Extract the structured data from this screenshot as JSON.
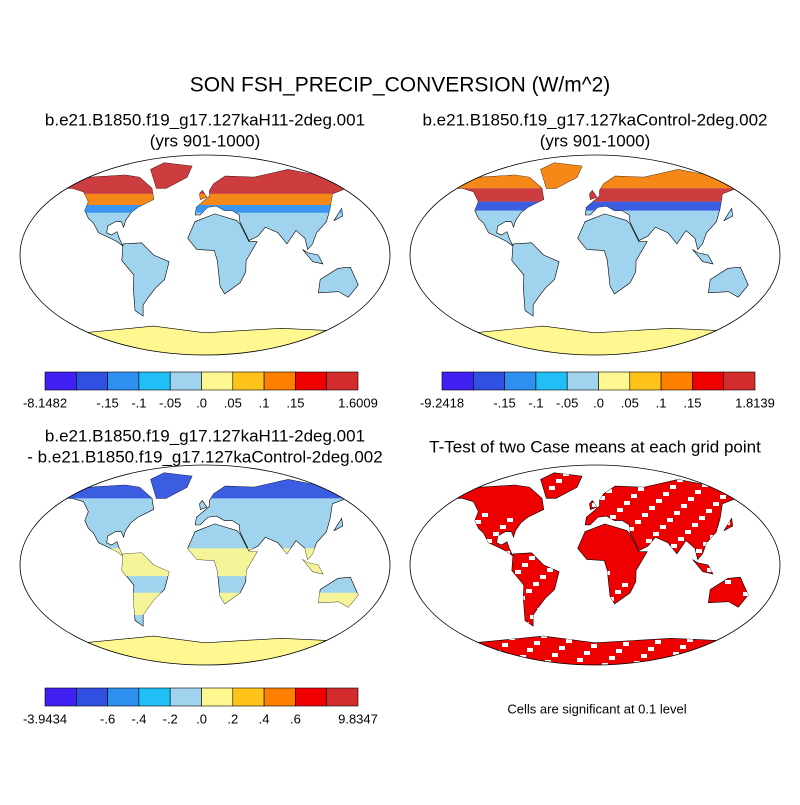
{
  "title": "SON FSH_PRECIP_CONVERSION (W/m^2)",
  "panels": [
    {
      "title": [
        "b.e21.B1850.f19_g17.127kaH11-2deg.001",
        "(yrs 901-1000)"
      ],
      "colorbar": {
        "colors": [
          "#4020f0",
          "#2f50e0",
          "#2f8ff0",
          "#20bff5",
          "#a0d4ee",
          "#fff78f",
          "#ffc31a",
          "#ff7f00",
          "#f00000",
          "#d22c2c"
        ],
        "labels": [
          "-8.1482",
          null,
          "-.15",
          "-.1",
          "-.05",
          ".0",
          ".05",
          ".1",
          ".15",
          null,
          "1.6009"
        ]
      }
    },
    {
      "title": [
        "b.e21.B1850.f19_g17.127kaControl-2deg.002",
        "(yrs 901-1000)"
      ],
      "colorbar": {
        "colors": [
          "#4020f0",
          "#2f50e0",
          "#2f8ff0",
          "#20bff5",
          "#a0d4ee",
          "#fff78f",
          "#ffc31a",
          "#ff7f00",
          "#f00000",
          "#d22c2c"
        ],
        "labels": [
          "-9.2418",
          null,
          "-.15",
          "-.1",
          "-.05",
          ".0",
          ".05",
          ".1",
          ".15",
          null,
          "1.8139"
        ]
      }
    },
    {
      "title": [
        "b.e21.B1850.f19_g17.127kaH11-2deg.001",
        "- b.e21.B1850.f19_g17.127kaControl-2deg.002"
      ],
      "colorbar": {
        "colors": [
          "#4020f0",
          "#2f50e0",
          "#2f8ff0",
          "#20bff5",
          "#a0d4ee",
          "#fff78f",
          "#ffc31a",
          "#ff7f00",
          "#f00000",
          "#d22c2c"
        ],
        "labels": [
          "-3.9434",
          null,
          "-.6",
          "-.4",
          "-.2",
          ".0",
          ".2",
          ".4",
          ".6",
          null,
          "9.8347"
        ]
      }
    },
    {
      "title": [
        "T-Test of two Case means at each grid point"
      ],
      "note": "Cells are significant at 0.1 level"
    }
  ]
}
